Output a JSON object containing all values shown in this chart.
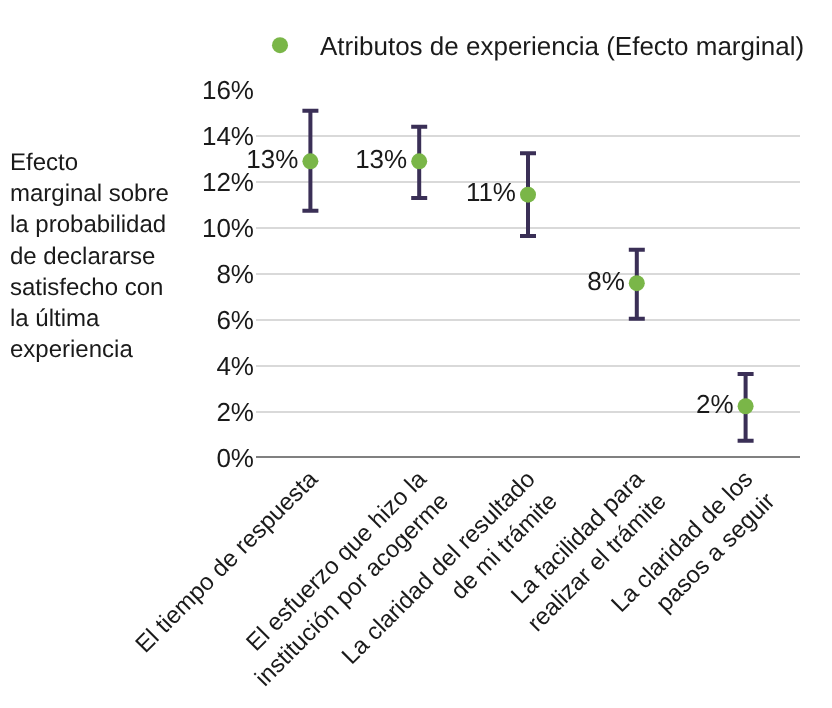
{
  "chart_data": {
    "type": "scatter",
    "ylabel": "Efecto\nmarginal sobre\nla probabilidad\nde declararse\nsatisfecho con\nla última\nexperiencia",
    "categories": [
      "El tiempo de respuesta",
      "El esfuerzo que hizo la\ninstitución por acogerme",
      "La claridad del resultado\nde mi trámite",
      "La facilidad para\nrealizar el trámite",
      "La claridad de los\npasos a seguir"
    ],
    "series": [
      {
        "name": "Atributos de experiencia (Efecto marginal)",
        "color": "#7ab648",
        "values": [
          12.9,
          12.9,
          11.45,
          7.6,
          2.25
        ],
        "errors": [
          [
            10.75,
            15.1
          ],
          [
            11.3,
            14.4
          ],
          [
            9.65,
            13.25
          ],
          [
            6.05,
            9.05
          ],
          [
            0.75,
            3.65
          ]
        ],
        "value_labels": [
          "13%",
          "13%",
          "11%",
          "8%",
          "2%"
        ]
      }
    ],
    "ylim": [
      0,
      16
    ],
    "yticks": [
      {
        "value": 0,
        "label": "0%"
      },
      {
        "value": 2,
        "label": "2%"
      },
      {
        "value": 4,
        "label": "4%"
      },
      {
        "value": 6,
        "label": "6%"
      },
      {
        "value": 8,
        "label": "8%"
      },
      {
        "value": 10,
        "label": "10%"
      },
      {
        "value": 12,
        "label": "12%"
      },
      {
        "value": 14,
        "label": "14%"
      },
      {
        "value": 16,
        "label": "16%"
      }
    ],
    "grid": "y",
    "legend": "top",
    "marker": "circle"
  }
}
